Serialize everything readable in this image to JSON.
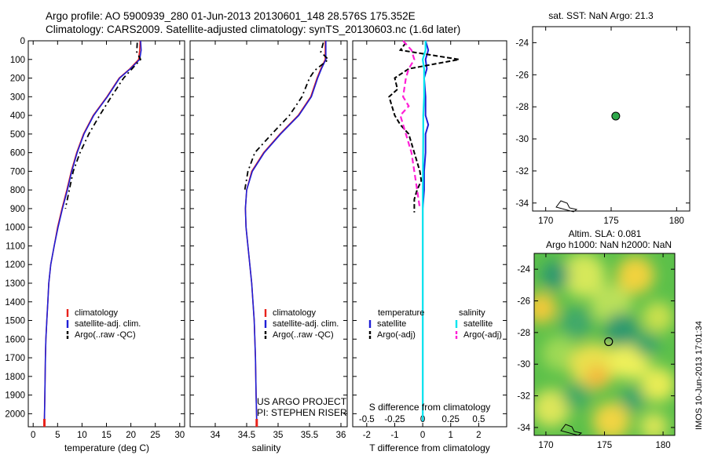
{
  "header": {
    "line1": "Argo profile: AO 5900939_280 01-Jun-2013 20130601_148 28.576S 175.352E",
    "line2": "Climatology: CARS2009. Satellite-adjusted climatology: synTS_20130603.nc (1.6d later)"
  },
  "colors": {
    "climatology": "#e8221b",
    "satellite": "#1f1fd6",
    "argo": "#000000",
    "salinity_satellite": "#00e5ee",
    "salinity_argo": "#ff1fd6",
    "map_land": "#000000",
    "marker_fill": "#2ea84a"
  },
  "chart_data": [
    {
      "id": "temperature",
      "type": "line",
      "xlabel": "temperature (deg C)",
      "ylabel": "",
      "xlim": [
        -1,
        31
      ],
      "xticks": [
        0,
        5,
        10,
        15,
        20,
        25,
        30
      ],
      "ylim": [
        2070,
        0
      ],
      "yticks": [
        0,
        100,
        200,
        300,
        400,
        500,
        600,
        700,
        800,
        900,
        1000,
        1100,
        1200,
        1300,
        1400,
        1500,
        1600,
        1700,
        1800,
        1900,
        2000
      ],
      "legend": [
        "climatology",
        "satellite-adj. clim.",
        "Argo(..raw -QC)"
      ],
      "series": [
        {
          "name": "climatology",
          "x": [
            21.9,
            21.8,
            21.6,
            19.8,
            17.6,
            15.1,
            12.3,
            10.3,
            8.9,
            7.8,
            6.9,
            5.9,
            5.0,
            4.3,
            3.6,
            3.2,
            3.0,
            2.8,
            2.6,
            2.5,
            2.4,
            2.3
          ],
          "y": [
            0,
            50,
            100,
            150,
            200,
            300,
            400,
            500,
            600,
            700,
            800,
            900,
            1000,
            1100,
            1200,
            1300,
            1400,
            1500,
            1600,
            1700,
            1900,
            2040
          ]
        },
        {
          "name": "satellite-adj. clim.",
          "x": [
            22.0,
            22.1,
            21.8,
            19.9,
            17.7,
            15.2,
            12.4,
            10.4,
            9.0,
            7.9,
            7.0,
            6.0,
            5.1,
            4.3,
            3.6,
            3.2,
            3.0,
            2.8,
            2.6,
            2.5,
            2.4,
            2.3
          ],
          "y": [
            0,
            50,
            100,
            150,
            200,
            300,
            400,
            500,
            600,
            700,
            800,
            900,
            1000,
            1100,
            1200,
            1300,
            1400,
            1500,
            1600,
            1700,
            1900,
            2040
          ]
        },
        {
          "name": "Argo(..raw -QC)",
          "x": [
            21.3,
            21.2,
            22.0,
            20.6,
            18.5,
            16.0,
            13.6,
            11.4,
            9.6,
            8.2,
            7.4,
            6.6
          ],
          "y": [
            10,
            60,
            100,
            140,
            200,
            300,
            400,
            500,
            600,
            700,
            800,
            900
          ]
        }
      ]
    },
    {
      "id": "salinity",
      "type": "line",
      "xlabel": "salinity",
      "ylabel": "",
      "xlim": [
        33.6,
        36.1
      ],
      "xticks": [
        34,
        34.5,
        35,
        35.5,
        36
      ],
      "ylim": [
        2070,
        0
      ],
      "legend": [
        "climatology",
        "satellite-adj. clim.",
        "Argo(..raw -QC)"
      ],
      "annotations": [
        "US ARGO PROJECT",
        "PI: STEPHEN RISER"
      ],
      "series": [
        {
          "name": "climatology",
          "x": [
            35.75,
            35.75,
            35.75,
            35.68,
            35.62,
            35.52,
            35.32,
            35.03,
            34.77,
            34.58,
            34.5,
            34.48,
            34.49,
            34.52,
            34.55,
            34.58,
            34.6,
            34.62,
            34.64,
            34.65,
            34.66
          ],
          "y": [
            0,
            50,
            100,
            150,
            200,
            300,
            400,
            500,
            600,
            700,
            800,
            900,
            1000,
            1100,
            1200,
            1300,
            1400,
            1500,
            1700,
            1900,
            2040
          ]
        },
        {
          "name": "satellite-adj. clim.",
          "x": [
            35.76,
            35.76,
            35.76,
            35.69,
            35.63,
            35.53,
            35.33,
            35.04,
            34.78,
            34.59,
            34.5,
            34.48,
            34.49,
            34.52,
            34.55,
            34.58,
            34.6,
            34.62,
            34.64,
            34.65,
            34.66
          ],
          "y": [
            0,
            50,
            100,
            150,
            200,
            300,
            400,
            500,
            600,
            700,
            800,
            900,
            1000,
            1100,
            1200,
            1300,
            1400,
            1500,
            1700,
            1900,
            2040
          ]
        },
        {
          "name": "Argo(..raw -QC)",
          "x": [
            35.72,
            35.68,
            35.8,
            35.58,
            35.5,
            35.38,
            35.18,
            34.9,
            34.63,
            34.52,
            34.47
          ],
          "y": [
            10,
            60,
            100,
            160,
            200,
            300,
            400,
            500,
            600,
            700,
            800
          ]
        }
      ]
    },
    {
      "id": "difference",
      "type": "line",
      "xlabel": "T difference from climatology",
      "ylabel": "",
      "top_label": "S difference from climatology",
      "xlim": [
        -2.5,
        3
      ],
      "xticks": [
        -2,
        -1,
        0,
        1,
        2
      ],
      "top_ticks": [
        {
          "v": -0.5,
          "label": "-0.5"
        },
        {
          "v": -0.25,
          "label": "-0.25"
        },
        {
          "v": 0,
          "label": "0"
        },
        {
          "v": 0.25,
          "label": "0.25"
        },
        {
          "v": 0.5,
          "label": "0.5"
        }
      ],
      "top_scale": 4,
      "ylim": [
        2070,
        0
      ],
      "legend_groups": [
        {
          "title": "temperature",
          "items": [
            "satellite",
            "Argo(-adj)"
          ]
        },
        {
          "title": "salinity",
          "items": [
            "satellite",
            "Argo(-adj)"
          ]
        }
      ],
      "series": [
        {
          "name": "temperature satellite",
          "x": [
            0.1,
            0.2,
            0.1,
            0.15,
            0.05,
            0.1,
            0.1,
            0.2,
            0.1,
            0.1,
            0.05,
            0.05,
            0,
            0,
            0,
            0,
            0
          ],
          "y": [
            0,
            50,
            100,
            150,
            200,
            300,
            400,
            450,
            500,
            600,
            700,
            800,
            900,
            1200,
            1500,
            1800,
            2040
          ]
        },
        {
          "name": "temperature Argo(-adj)",
          "x": [
            -0.6,
            -0.8,
            1.3,
            -0.5,
            -1.0,
            -0.9,
            -1.2,
            -1.0,
            -0.8,
            -0.5,
            -0.3,
            -0.1,
            -0.05,
            -0.2,
            -0.3,
            -0.3
          ],
          "y": [
            10,
            50,
            100,
            150,
            200,
            260,
            300,
            400,
            450,
            500,
            600,
            700,
            750,
            800,
            850,
            920
          ]
        },
        {
          "name": "salinity satellite",
          "x": [
            0.1,
            0.1,
            0,
            0.05,
            0.05,
            0.05,
            0.02,
            0.02,
            0.01,
            0,
            0,
            0,
            0
          ],
          "y": [
            0,
            50,
            100,
            150,
            200,
            300,
            400,
            500,
            700,
            900,
            1200,
            1600,
            2040
          ]
        },
        {
          "name": "salinity Argo(-adj)",
          "x": [
            -0.7,
            -0.4,
            -0.3,
            -0.5,
            -0.6,
            -0.7,
            -0.5,
            -0.8,
            -0.6,
            -0.4,
            -0.3,
            -0.2,
            -0.1
          ],
          "y": [
            0,
            50,
            100,
            150,
            200,
            300,
            350,
            400,
            500,
            600,
            700,
            800,
            900
          ]
        }
      ]
    },
    {
      "id": "sst_map",
      "type": "scatter",
      "title": "sat. SST: NaN Argo: 21.3",
      "xlim": [
        169,
        181
      ],
      "xticks": [
        170,
        175,
        180
      ],
      "ylim": [
        -34.5,
        -23
      ],
      "yticks": [
        -24,
        -26,
        -28,
        -30,
        -32,
        -34
      ],
      "point": {
        "lon": 175.352,
        "lat": -28.576
      }
    },
    {
      "id": "sla_map",
      "type": "heatmap",
      "title": [
        "Altim. SLA: 0.081",
        "Argo h1000: NaN h2000: NaN"
      ],
      "xlim": [
        169,
        181
      ],
      "xticks": [
        170,
        175,
        180
      ],
      "ylim": [
        -34.5,
        -23
      ],
      "yticks": [
        -24,
        -26,
        -28,
        -30,
        -32,
        -34
      ],
      "point": {
        "lon": 175.352,
        "lat": -28.576
      },
      "side_label": "IMOS 10-Jun-2013 17:01:34"
    }
  ]
}
